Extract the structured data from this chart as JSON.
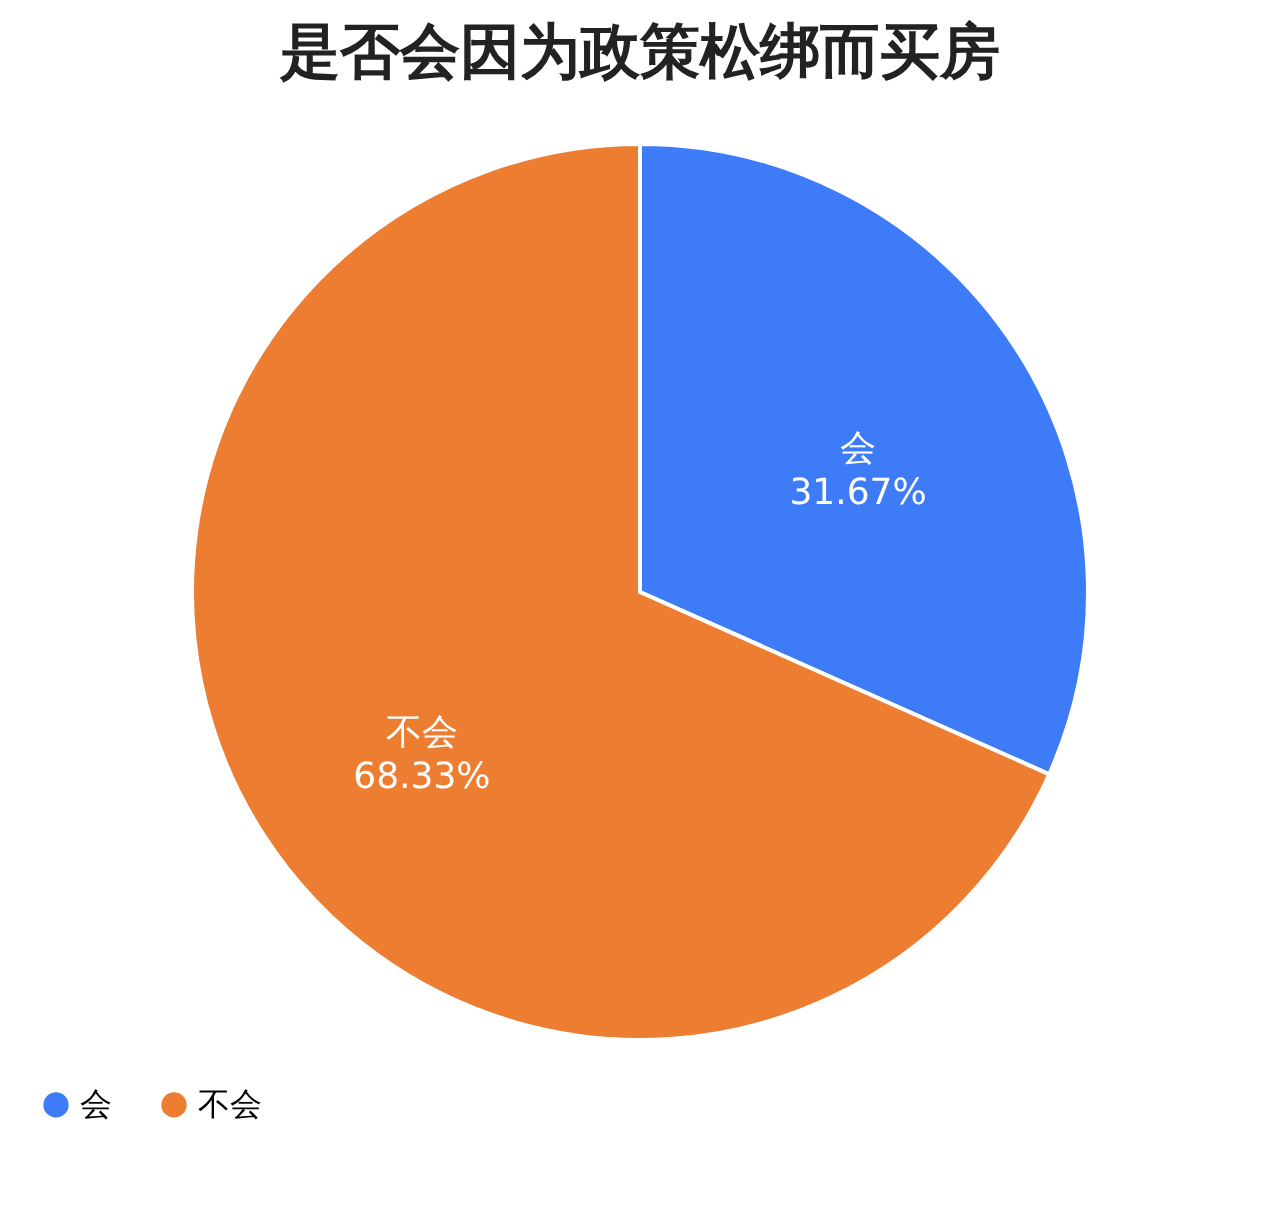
{
  "chart_data": {
    "type": "pie",
    "title": "是否会因为政策松绑而买房",
    "categories": [
      "会",
      "不会"
    ],
    "values": [
      31.67,
      68.33
    ],
    "colors": [
      "#3e7bf6",
      "#ed7d31"
    ],
    "value_labels": [
      "31.67%",
      "68.33%"
    ],
    "legend": "bottom"
  }
}
